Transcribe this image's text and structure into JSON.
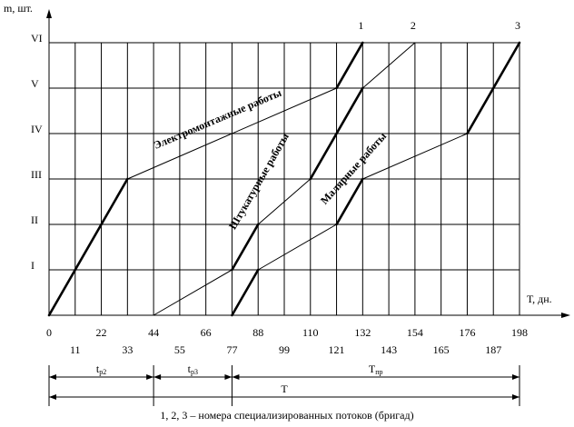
{
  "chart_data": {
    "type": "line",
    "x_label": "Т, дн.",
    "y_label": "m, шт.",
    "xlim": [
      0,
      198
    ],
    "ylim": [
      0,
      6
    ],
    "xticks": [
      0,
      11,
      22,
      33,
      44,
      55,
      66,
      77,
      88,
      99,
      110,
      121,
      132,
      143,
      154,
      165,
      176,
      187,
      198
    ],
    "yticks": [
      {
        "value": 1,
        "label": "I"
      },
      {
        "value": 2,
        "label": "II"
      },
      {
        "value": 3,
        "label": "III"
      },
      {
        "value": 4,
        "label": "IV"
      },
      {
        "value": 5,
        "label": "V"
      },
      {
        "value": 6,
        "label": "VI"
      }
    ],
    "grid": true,
    "color": "#000000",
    "series": [
      {
        "name": "1",
        "x": [
          0,
          33,
          121,
          132
        ],
        "values": [
          0,
          3,
          5,
          6
        ],
        "segments": [
          "thick",
          "thin",
          "thick"
        ]
      },
      {
        "name": "2",
        "x": [
          44,
          77,
          88,
          110,
          132,
          154
        ],
        "values": [
          0,
          1,
          2,
          3,
          5,
          6
        ],
        "segments": [
          "thin",
          "thick",
          "thin",
          "thick",
          "thin"
        ]
      },
      {
        "name": "3",
        "x": [
          77,
          88,
          121,
          132,
          176,
          198
        ],
        "values": [
          0,
          1,
          2,
          3,
          4,
          6
        ],
        "segments": [
          "thick",
          "thin",
          "thick",
          "thin",
          "thick"
        ]
      }
    ],
    "work_labels": [
      "Электромонтажные работы",
      "Штукатурные работы",
      "Малярные работы"
    ],
    "spans": [
      {
        "label": "t",
        "sub": "р2",
        "from": 0,
        "to": 44
      },
      {
        "label": "t",
        "sub": "р3",
        "from": 44,
        "to": 77
      },
      {
        "label": "T",
        "sub": "пр",
        "from": 77,
        "to": 198
      },
      {
        "label": "T",
        "from": 0,
        "to": 198
      }
    ],
    "caption": "1, 2, 3 – номера специализированных потоков (бригад)"
  }
}
